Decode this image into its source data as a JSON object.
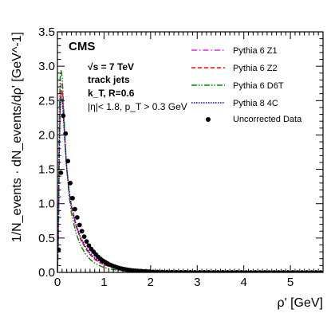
{
  "chart_data": {
    "type": "line",
    "title": "",
    "xlabel": "ρ' [GeV]",
    "ylabel": "1/N_events · dN_events/dρ' [GeV^-1]",
    "xlim": [
      0,
      5.7
    ],
    "ylim": [
      0,
      3.5
    ],
    "x_ticks": [
      "0",
      "1",
      "2",
      "3",
      "4",
      "5"
    ],
    "y_ticks": [
      "0.0",
      "0.5",
      "1.0",
      "1.5",
      "2.0",
      "2.5",
      "3.0",
      "3.5"
    ],
    "grid": false,
    "legend_position": "top-right",
    "experiment": "CMS",
    "annotations": [
      "√s = 7 TeV",
      "track jets",
      "k_T, R=0.6",
      "|η|< 1.8, p_T > 0.3 GeV"
    ],
    "series": [
      {
        "name": "Pythia 6 Z1",
        "color": "#ee22ee",
        "dash": "dashdot",
        "x": [
          0,
          0.02,
          0.04,
          0.06,
          0.08,
          0.1,
          0.12,
          0.14,
          0.16,
          0.18,
          0.2,
          0.25,
          0.3,
          0.4,
          0.5,
          0.6,
          0.7,
          0.8,
          0.9,
          1.0,
          1.2,
          1.4,
          1.6,
          1.8,
          2.0,
          2.5,
          3.0,
          4.0,
          5.0,
          5.7
        ],
        "y": [
          0,
          0.5,
          1.9,
          2.55,
          2.75,
          2.7,
          2.5,
          2.2,
          1.95,
          1.72,
          1.52,
          1.18,
          0.96,
          0.68,
          0.49,
          0.36,
          0.27,
          0.2,
          0.15,
          0.115,
          0.07,
          0.042,
          0.026,
          0.016,
          0.01,
          0.004,
          0.002,
          0.0005,
          0.0001,
          0
        ]
      },
      {
        "name": "Pythia 6 Z2",
        "color": "#ff0000",
        "dash": "dashed",
        "x": [
          0,
          0.02,
          0.04,
          0.06,
          0.08,
          0.1,
          0.12,
          0.14,
          0.16,
          0.18,
          0.2,
          0.25,
          0.3,
          0.4,
          0.5,
          0.6,
          0.7,
          0.8,
          0.9,
          1.0,
          1.2,
          1.4,
          1.6,
          1.8,
          2.0,
          2.5,
          3.0,
          4.0,
          5.0,
          5.7
        ],
        "y": [
          0,
          0.5,
          1.85,
          2.45,
          2.65,
          2.6,
          2.42,
          2.15,
          1.9,
          1.7,
          1.5,
          1.17,
          0.95,
          0.67,
          0.48,
          0.35,
          0.26,
          0.19,
          0.145,
          0.11,
          0.068,
          0.041,
          0.025,
          0.016,
          0.01,
          0.004,
          0.002,
          0.0005,
          0.0001,
          0
        ]
      },
      {
        "name": "Pythia 6 D6T",
        "color": "#008800",
        "dash": "dashdotdot",
        "x": [
          0,
          0.02,
          0.04,
          0.06,
          0.08,
          0.1,
          0.12,
          0.14,
          0.16,
          0.18,
          0.2,
          0.25,
          0.3,
          0.4,
          0.5,
          0.6,
          0.7,
          0.8,
          0.9,
          1.0,
          1.2,
          1.4,
          1.6,
          1.8,
          2.0,
          2.5,
          3.0,
          4.0,
          5.0,
          5.7
        ],
        "y": [
          0,
          0.7,
          2.3,
          2.85,
          2.95,
          2.85,
          2.6,
          2.3,
          2.0,
          1.75,
          1.52,
          1.12,
          0.86,
          0.57,
          0.39,
          0.27,
          0.19,
          0.135,
          0.1,
          0.072,
          0.04,
          0.023,
          0.014,
          0.008,
          0.005,
          0.002,
          0.001,
          0.0002,
          0.0001,
          0
        ]
      },
      {
        "name": "Pythia 8 4C",
        "color": "#0000cc",
        "dash": "dotted",
        "x": [
          0,
          0.02,
          0.04,
          0.06,
          0.08,
          0.1,
          0.12,
          0.14,
          0.16,
          0.18,
          0.2,
          0.25,
          0.3,
          0.4,
          0.5,
          0.6,
          0.7,
          0.8,
          0.9,
          1.0,
          1.2,
          1.4,
          1.6,
          1.8,
          2.0,
          2.5,
          3.0,
          4.0,
          5.0,
          5.7
        ],
        "y": [
          0,
          0.5,
          1.75,
          2.35,
          2.55,
          2.52,
          2.36,
          2.12,
          1.9,
          1.7,
          1.52,
          1.2,
          0.98,
          0.7,
          0.51,
          0.38,
          0.28,
          0.21,
          0.16,
          0.122,
          0.075,
          0.046,
          0.028,
          0.018,
          0.011,
          0.004,
          0.002,
          0.0005,
          0.0001,
          0
        ]
      },
      {
        "name": "Uncorrected Data",
        "color": "#000000",
        "marker": "circle",
        "x": [
          0.025,
          0.075,
          0.125,
          0.175,
          0.225,
          0.275,
          0.325,
          0.375,
          0.425,
          0.475,
          0.525,
          0.575,
          0.625,
          0.675,
          0.725,
          0.775,
          0.825,
          0.875,
          0.925,
          0.975,
          1.025,
          1.075,
          1.125,
          1.175,
          1.225,
          1.275,
          1.325,
          1.375,
          1.425,
          1.475,
          1.525,
          1.575,
          1.625,
          1.675,
          1.725,
          1.775,
          1.825,
          1.875,
          1.925,
          1.975,
          2.05,
          2.15,
          2.25,
          2.35,
          2.45,
          2.55,
          2.65,
          2.75,
          2.85,
          2.95,
          3.05,
          3.15,
          3.25,
          3.35,
          3.45,
          3.55,
          3.65,
          3.75,
          3.85,
          3.95,
          4.05,
          4.15,
          4.25,
          4.35,
          4.45,
          4.55,
          4.65,
          4.75,
          4.85,
          4.95,
          5.05,
          5.15,
          5.25,
          5.35,
          5.45,
          5.55,
          5.65
        ],
        "y": [
          0.33,
          1.45,
          2.28,
          2.02,
          1.62,
          1.3,
          1.08,
          0.92,
          0.8,
          0.69,
          0.6,
          0.52,
          0.45,
          0.39,
          0.34,
          0.3,
          0.26,
          0.225,
          0.195,
          0.17,
          0.15,
          0.13,
          0.113,
          0.098,
          0.085,
          0.074,
          0.064,
          0.055,
          0.048,
          0.042,
          0.036,
          0.031,
          0.027,
          0.024,
          0.021,
          0.018,
          0.016,
          0.014,
          0.012,
          0.011,
          0.009,
          0.007,
          0.006,
          0.005,
          0.004,
          0.0035,
          0.003,
          0.0025,
          0.002,
          0.0018,
          0.0015,
          0.0013,
          0.0011,
          0.001,
          0.0009,
          0.0008,
          0.0007,
          0.0006,
          0.0005,
          0.0005,
          0.0004,
          0.0004,
          0.0003,
          0.0003,
          0.0003,
          0.0002,
          0.0002,
          0.0002,
          0.0002,
          0.0001,
          0.0001,
          0.0001,
          0.0001,
          0.0001,
          0.0001,
          0.0001,
          0.0001
        ]
      }
    ]
  }
}
